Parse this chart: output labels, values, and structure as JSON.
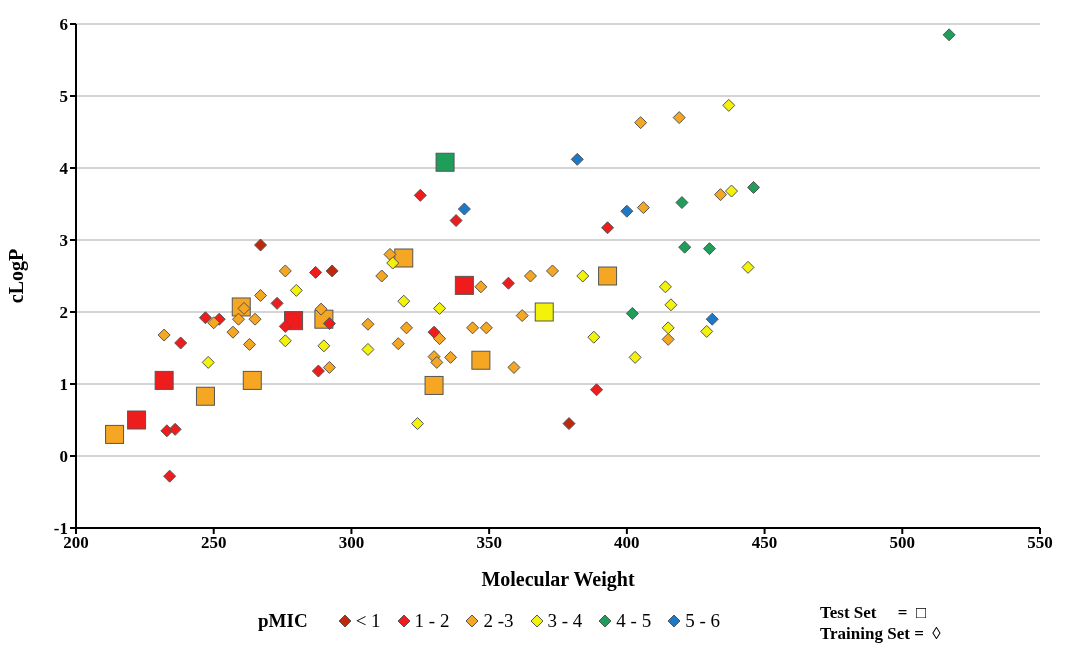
{
  "chart_data": {
    "type": "scatter",
    "xlabel": "Molecular Weight",
    "ylabel": "cLogP",
    "legend_title": "pMIC",
    "legend": "bottom",
    "grid": "y",
    "xlim": [
      200,
      550
    ],
    "xticks": [
      200,
      250,
      300,
      350,
      400,
      450,
      500,
      550
    ],
    "ylim": [
      -1,
      6
    ],
    "yticks": [
      -1,
      0,
      1,
      2,
      3,
      4,
      5,
      6
    ],
    "annotations": [
      "Test Set     =  □",
      "Training Set =  ◊"
    ],
    "series": [
      {
        "color": "#ee1c1c",
        "marker": "square",
        "x": [
          222,
          232,
          279,
          341
        ],
        "values": [
          0.5,
          1.05,
          1.88,
          2.37
        ]
      },
      {
        "color": "#f5a623",
        "marker": "square",
        "x": [
          214,
          247,
          260,
          264,
          290,
          319,
          330,
          347,
          393
        ],
        "values": [
          0.3,
          0.83,
          2.07,
          1.05,
          1.9,
          2.75,
          0.98,
          1.33,
          2.5
        ]
      },
      {
        "color": "#f2f20a",
        "marker": "square",
        "x": [
          370
        ],
        "values": [
          2.0
        ]
      },
      {
        "color": "#1e9e5a",
        "marker": "square",
        "x": [
          334
        ],
        "values": [
          4.08
        ]
      },
      {
        "name": "< 1",
        "color": "#c0280c",
        "marker": "diamond",
        "x": [
          267,
          293,
          379
        ],
        "values": [
          2.93,
          2.57,
          0.45
        ]
      },
      {
        "name": "1 - 2",
        "color": "#ee1c1c",
        "marker": "diamond",
        "x": [
          233,
          236,
          234,
          238,
          247,
          252,
          273,
          276,
          287,
          288,
          292,
          325,
          338,
          330,
          357,
          389,
          393
        ],
        "values": [
          0.35,
          0.37,
          -0.28,
          1.57,
          1.92,
          1.9,
          2.12,
          1.8,
          2.55,
          1.18,
          1.84,
          3.62,
          3.27,
          1.72,
          2.4,
          0.92,
          3.17
        ]
      },
      {
        "name": "2 -3",
        "color": "#f5a623",
        "marker": "diamond",
        "x": [
          232,
          250,
          257,
          259,
          261,
          263,
          265,
          267,
          276,
          289,
          292,
          306,
          311,
          314,
          317,
          320,
          330,
          331,
          332,
          336,
          344,
          347,
          349,
          359,
          362,
          365,
          373,
          405,
          406,
          419,
          415,
          434
        ],
        "values": [
          1.68,
          1.85,
          1.72,
          1.9,
          2.05,
          1.55,
          1.9,
          2.23,
          2.57,
          2.04,
          1.23,
          1.83,
          2.5,
          2.8,
          1.56,
          1.78,
          1.38,
          1.3,
          1.63,
          1.37,
          1.78,
          2.35,
          1.78,
          1.23,
          1.95,
          2.5,
          2.57,
          4.63,
          3.45,
          4.7,
          1.62,
          3.63
        ]
      },
      {
        "name": "3 - 4",
        "color": "#f2f20a",
        "marker": "diamond",
        "x": [
          248,
          276,
          280,
          290,
          306,
          315,
          319,
          332,
          324,
          384,
          388,
          403,
          414,
          416,
          415,
          429,
          437,
          438,
          444
        ],
        "values": [
          1.3,
          1.6,
          2.3,
          1.53,
          1.48,
          2.68,
          2.15,
          2.05,
          0.45,
          2.5,
          1.65,
          1.37,
          2.35,
          2.1,
          1.78,
          1.73,
          4.87,
          3.68,
          2.62
        ]
      },
      {
        "name": "4 - 5",
        "color": "#1e9e5a",
        "marker": "diamond",
        "x": [
          402,
          420,
          421,
          430,
          446,
          517
        ],
        "values": [
          1.98,
          3.52,
          2.9,
          2.88,
          3.73,
          5.85
        ]
      },
      {
        "name": "5 - 6",
        "color": "#1e78c8",
        "marker": "diamond",
        "x": [
          341,
          382,
          400,
          431
        ],
        "values": [
          3.43,
          4.12,
          3.4,
          1.9
        ]
      }
    ]
  }
}
